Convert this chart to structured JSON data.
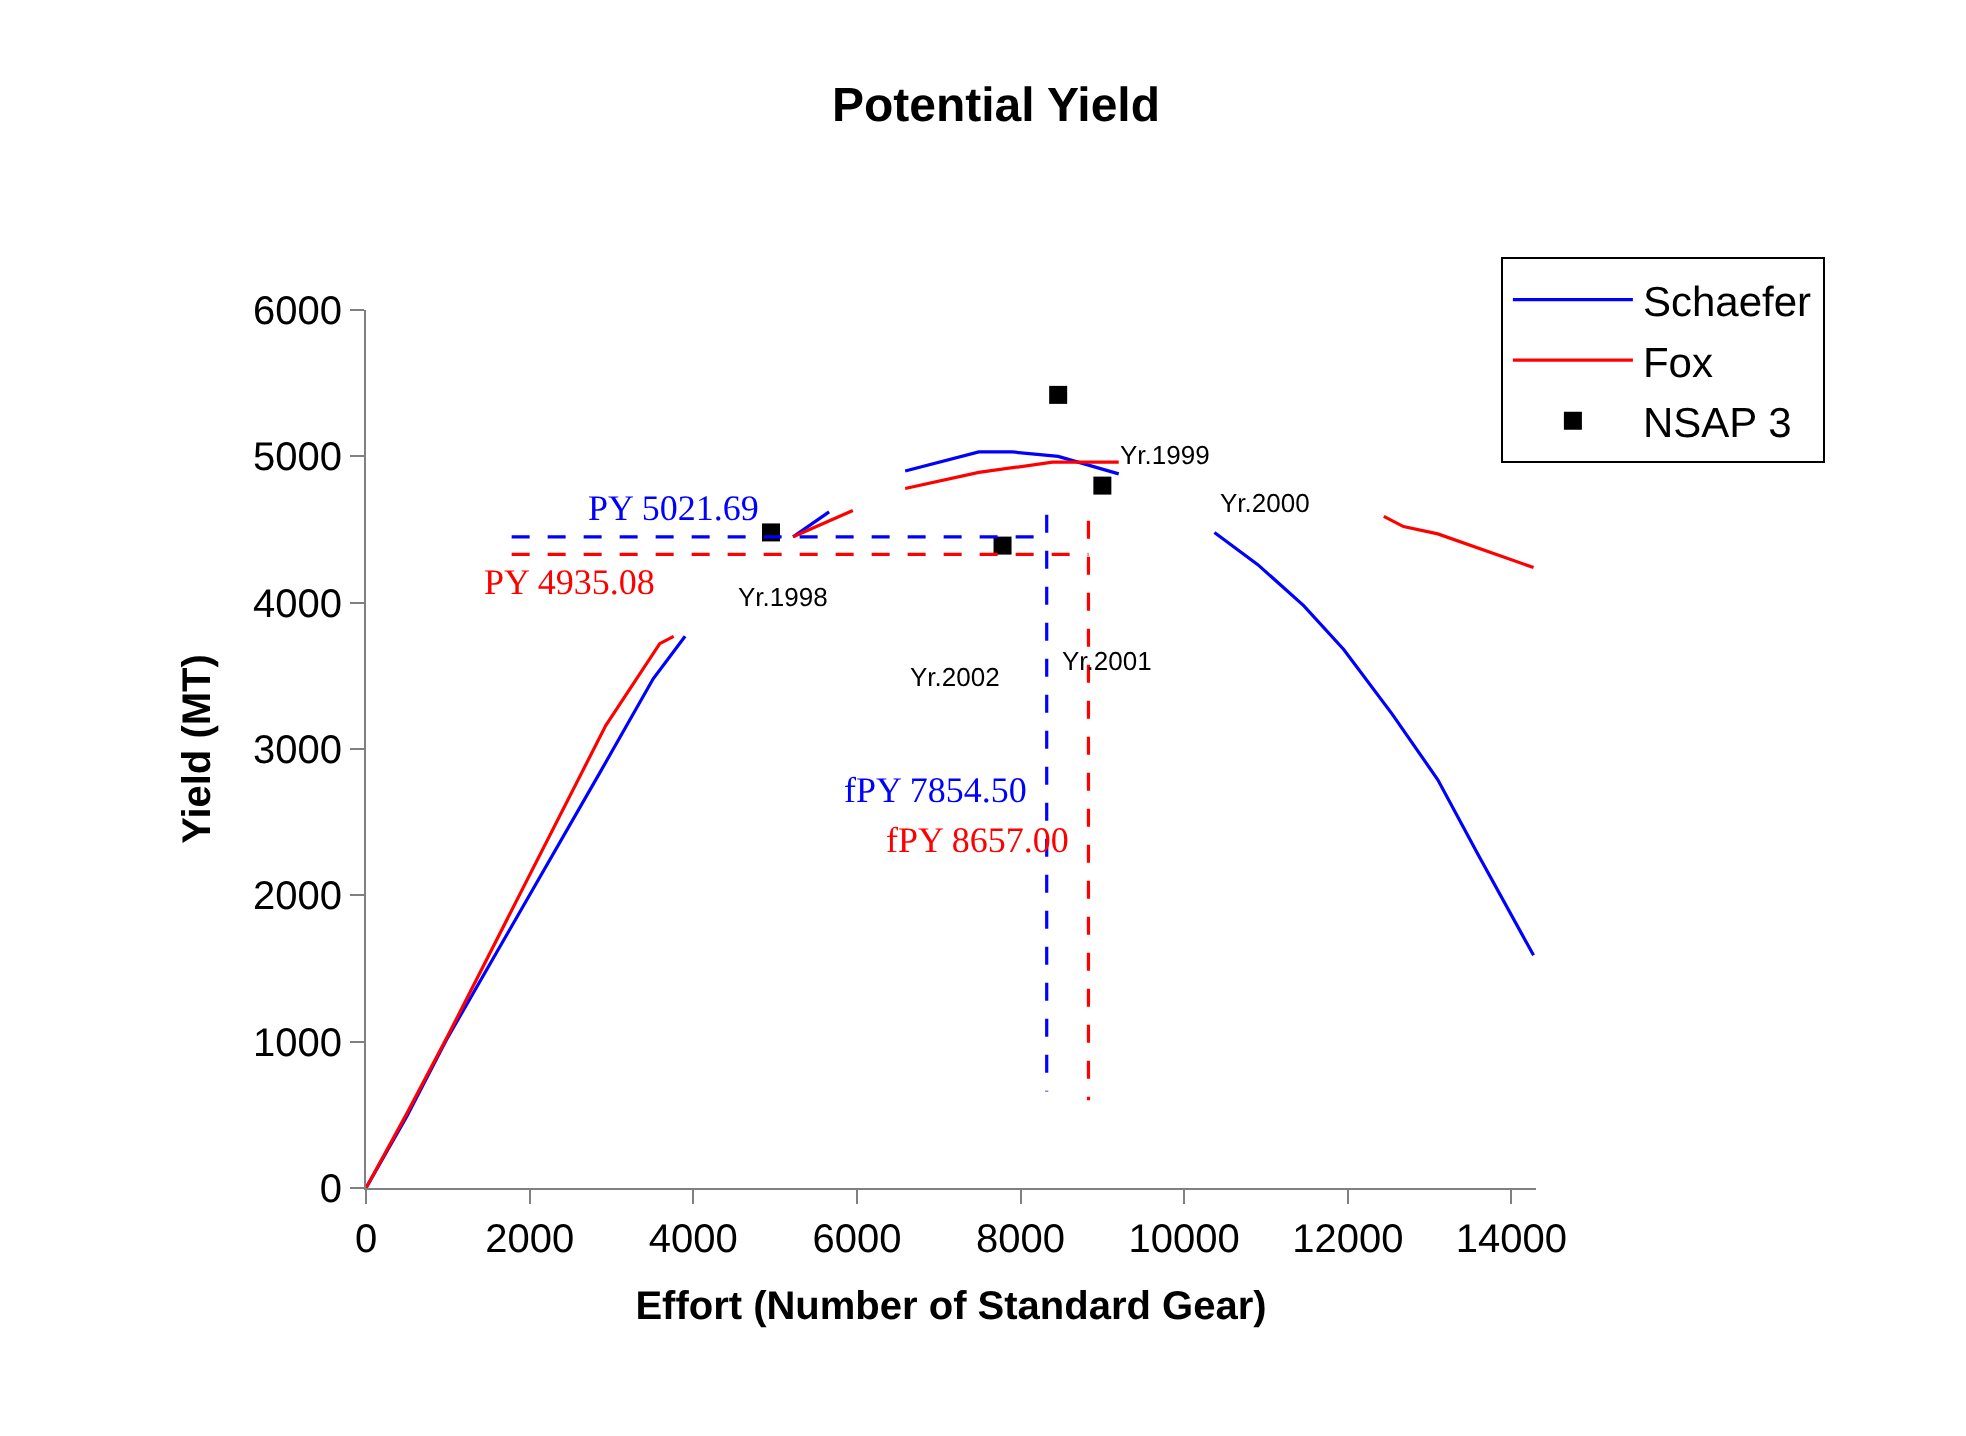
{
  "chart_data": {
    "type": "line",
    "title": "Potential Yield",
    "xlabel": "Effort (Number of Standard Gear)",
    "ylabel": "Yield (MT)",
    "xlim": [
      0,
      14300
    ],
    "xticks": [
      0,
      2000,
      4000,
      6000,
      8000,
      10000,
      12000,
      14000
    ],
    "ylim": [
      0,
      6000
    ],
    "yticks": [
      0,
      1000,
      2000,
      3000,
      4000,
      5000,
      6000
    ],
    "legend": "top right",
    "series": [
      {
        "name": "Schaefer",
        "color": "#0000ff",
        "line_style": "solid",
        "x": [
          0,
          500,
          980,
          2850,
          3510,
          3900,
          4500,
          5220,
          5660,
          6100,
          6590,
          7490,
          7900,
          8460,
          9200,
          9800,
          10370,
          10900,
          11460,
          11950,
          12540,
          13100,
          13590,
          14270
        ],
        "values": [
          0,
          490,
          1010,
          2830,
          3480,
          3770,
          null,
          4450,
          4620,
          null,
          4900,
          5030,
          5030,
          5000,
          4880,
          null,
          4480,
          4260,
          3980,
          3680,
          3240,
          2790,
          2280,
          1590
        ]
      },
      {
        "name": "Fox",
        "color": "#ff0000",
        "line_style": "solid",
        "x": [
          0,
          500,
          1000,
          2930,
          3590,
          3760,
          4500,
          5220,
          5950,
          6300,
          6590,
          7490,
          8390,
          9200,
          10800,
          12440,
          12680,
          13100,
          14270
        ],
        "values": [
          0,
          510,
          1040,
          3160,
          3720,
          3770,
          null,
          4450,
          4630,
          null,
          4780,
          4890,
          4960,
          4960,
          null,
          4590,
          4520,
          4470,
          4240
        ]
      },
      {
        "name": "NSAP 3",
        "color": "#000000",
        "type": "scatter",
        "marker": "square",
        "x": [
          4950,
          8460,
          9000,
          7780
        ],
        "values": [
          4480,
          5420,
          4800,
          4390
        ]
      },
      {
        "name": "PY 5021.69",
        "color": "#0000ff",
        "line_style": "dashed",
        "x": [
          1780,
          8320
        ],
        "values": [
          4450,
          4450
        ]
      },
      {
        "name": "PY 4935.08",
        "color": "#ff0000",
        "line_style": "dashed",
        "x": [
          1780,
          8830
        ],
        "values": [
          4330,
          4330
        ]
      },
      {
        "name": "fPY 7854.50",
        "color": "#0000ff",
        "line_style": "dashed",
        "x": [
          8320,
          8320
        ],
        "values": [
          4600,
          660
        ]
      },
      {
        "name": "fPY 8657.00",
        "color": "#ff0000",
        "line_style": "dashed",
        "x": [
          8830,
          8830
        ],
        "values": [
          4560,
          600
        ]
      }
    ],
    "annotations": [
      "Yr.1998",
      "Yr.1999",
      "Yr.2000",
      "Yr.2001",
      "Yr.2002"
    ]
  }
}
